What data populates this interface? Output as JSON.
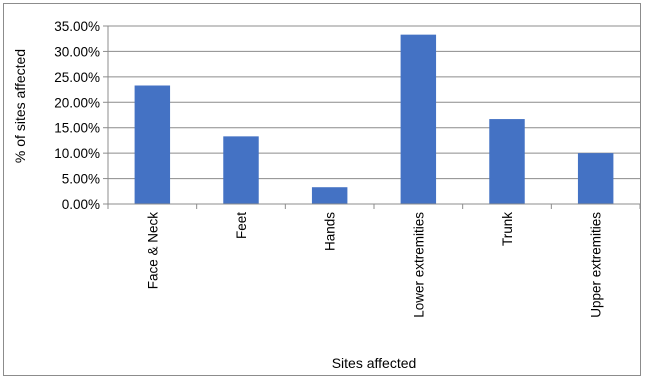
{
  "chart_data": {
    "type": "bar",
    "title": "",
    "xlabel": "Sites affected",
    "ylabel": "% of sites affected",
    "categories": [
      "Face & Neck",
      "Feet",
      "Hands",
      "Lower extremities",
      "Trunk",
      "Upper extremities"
    ],
    "values": [
      23.3,
      13.3,
      3.3,
      33.3,
      16.7,
      10.0
    ],
    "ylim": [
      0,
      35
    ],
    "yticks": [
      0,
      5,
      10,
      15,
      20,
      25,
      30,
      35
    ],
    "ytick_labels": [
      "0.00%",
      "5.00%",
      "10.00%",
      "15.00%",
      "20.00%",
      "25.00%",
      "30.00%",
      "35.00%"
    ],
    "grid": true,
    "legend": "none",
    "bar_color": "#4472c4",
    "grid_color": "#8c8c8c"
  }
}
